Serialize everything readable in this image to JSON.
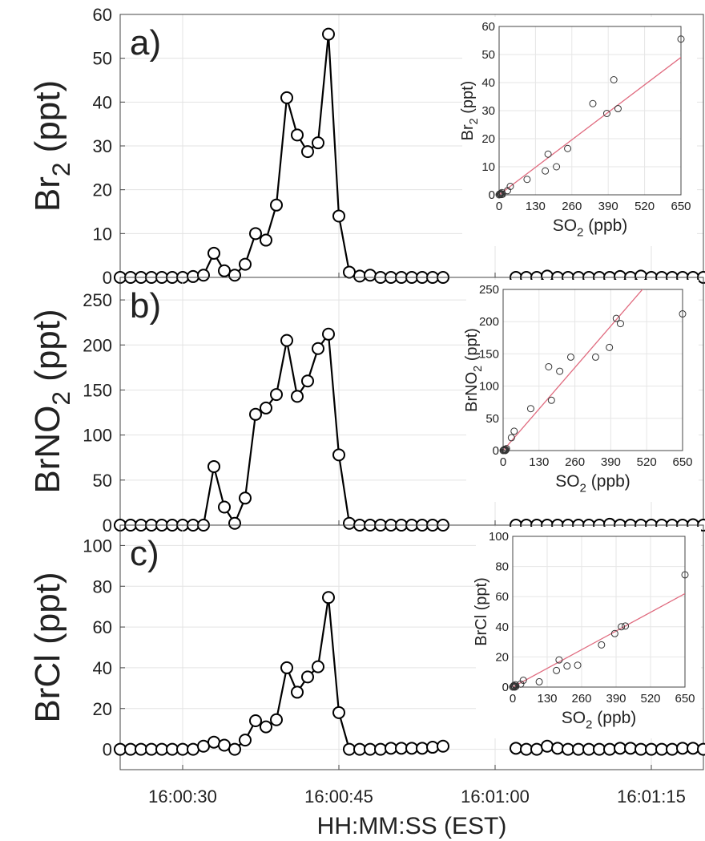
{
  "figure": {
    "xlabel": "HH:MM:SS (EST)"
  },
  "chart_data": [
    {
      "type": "line",
      "panel_label": "a)",
      "ylabel_main": "Br",
      "ylabel_sub": "2",
      "ylabel_tail": " (ppt)",
      "ylim": [
        0,
        60
      ],
      "yticks": [
        0,
        10,
        20,
        30,
        40,
        50,
        60
      ],
      "x_range_seconds": [
        "16:00:24",
        "16:01:20"
      ],
      "xticks": [
        "16:00:30",
        "16:00:45",
        "16:01:00",
        "16:01:15"
      ],
      "grid": true,
      "series": [
        {
          "x": [
            "16:00:24",
            "16:00:25",
            "16:00:26",
            "16:00:27",
            "16:00:28",
            "16:00:29",
            "16:00:30",
            "16:00:31",
            "16:00:32",
            "16:00:33",
            "16:00:34",
            "16:00:35",
            "16:00:36",
            "16:00:37",
            "16:00:38",
            "16:00:39",
            "16:00:40",
            "16:00:41",
            "16:00:42",
            "16:00:43",
            "16:00:44",
            "16:00:45",
            "16:00:46",
            "16:00:47",
            "16:00:48",
            "16:00:49",
            "16:00:50",
            "16:00:51",
            "16:00:52",
            "16:00:53",
            "16:00:54",
            "16:00:55"
          ],
          "y": [
            0,
            0,
            0,
            0,
            0,
            0,
            0,
            0.2,
            0.5,
            5.5,
            1.5,
            0.5,
            3,
            10,
            8.5,
            16.5,
            41,
            32.5,
            28.7,
            30.7,
            55.5,
            14,
            1.2,
            0.3,
            0.5,
            0,
            0,
            0,
            0,
            0,
            0,
            0
          ]
        },
        {
          "x": [
            "16:01:02",
            "16:01:03",
            "16:01:04",
            "16:01:05",
            "16:01:06",
            "16:01:07",
            "16:01:08",
            "16:01:09",
            "16:01:10",
            "16:01:11",
            "16:01:12",
            "16:01:13",
            "16:01:14",
            "16:01:15",
            "16:01:16",
            "16:01:17",
            "16:01:18",
            "16:01:19",
            "16:01:20"
          ],
          "y": [
            0,
            0,
            0,
            0.3,
            0,
            0,
            0,
            0,
            0,
            0,
            0.2,
            0,
            0.3,
            0,
            0,
            0,
            0,
            0,
            0
          ]
        }
      ],
      "inset": {
        "type": "scatter",
        "xlabel_main": "SO",
        "xlabel_sub": "2",
        "xlabel_tail": " (ppb)",
        "ylabel_main": "Br",
        "ylabel_sub": "2",
        "ylabel_tail": " (ppt)",
        "xlim": [
          0,
          650
        ],
        "ylim": [
          0,
          60
        ],
        "xticks": [
          0,
          130,
          260,
          390,
          520,
          650
        ],
        "yticks": [
          0,
          10,
          20,
          30,
          40,
          50,
          60
        ],
        "points": [
          [
            0,
            0
          ],
          [
            2,
            0.3
          ],
          [
            4,
            0.2
          ],
          [
            6,
            0.5
          ],
          [
            8,
            0.1
          ],
          [
            10,
            0.8
          ],
          [
            12,
            0.2
          ],
          [
            30,
            1.5
          ],
          [
            40,
            3
          ],
          [
            100,
            5.5
          ],
          [
            165,
            8.5
          ],
          [
            175,
            14.5
          ],
          [
            205,
            10
          ],
          [
            245,
            16.5
          ],
          [
            335,
            32.5
          ],
          [
            385,
            29
          ],
          [
            410,
            41
          ],
          [
            425,
            30.7
          ],
          [
            650,
            55.5
          ]
        ],
        "fit_line": [
          [
            0,
            0
          ],
          [
            650,
            49
          ]
        ]
      }
    },
    {
      "type": "line",
      "panel_label": "b)",
      "ylabel_main": "BrNO",
      "ylabel_sub": "2",
      "ylabel_tail": " (ppt)",
      "ylim": [
        0,
        275
      ],
      "yticks": [
        0,
        50,
        100,
        150,
        200,
        250
      ],
      "x_range_seconds": [
        "16:00:24",
        "16:01:20"
      ],
      "xticks": [
        "16:00:30",
        "16:00:45",
        "16:01:00",
        "16:01:15"
      ],
      "grid": true,
      "series": [
        {
          "x": [
            "16:00:24",
            "16:00:25",
            "16:00:26",
            "16:00:27",
            "16:00:28",
            "16:00:29",
            "16:00:30",
            "16:00:31",
            "16:00:32",
            "16:00:33",
            "16:00:34",
            "16:00:35",
            "16:00:36",
            "16:00:37",
            "16:00:38",
            "16:00:39",
            "16:00:40",
            "16:00:41",
            "16:00:42",
            "16:00:43",
            "16:00:44",
            "16:00:45",
            "16:00:46",
            "16:00:47",
            "16:00:48",
            "16:00:49",
            "16:00:50",
            "16:00:51",
            "16:00:52",
            "16:00:53",
            "16:00:54",
            "16:00:55"
          ],
          "y": [
            0,
            0,
            0,
            0,
            0,
            0,
            0,
            0,
            0,
            65,
            20,
            2,
            30,
            123,
            130,
            145,
            205,
            143,
            160,
            196,
            212,
            78,
            2,
            0,
            0,
            0,
            0,
            0,
            0,
            0,
            0,
            0
          ]
        },
        {
          "x": [
            "16:01:02",
            "16:01:03",
            "16:01:04",
            "16:01:05",
            "16:01:06",
            "16:01:07",
            "16:01:08",
            "16:01:09",
            "16:01:10",
            "16:01:11",
            "16:01:12",
            "16:01:13",
            "16:01:14",
            "16:01:15",
            "16:01:16",
            "16:01:17",
            "16:01:18",
            "16:01:19",
            "16:01:20"
          ],
          "y": [
            0,
            0,
            0,
            0,
            0,
            0,
            0,
            0,
            0,
            1,
            0,
            0,
            0,
            0,
            0,
            0,
            0,
            0.5,
            0
          ]
        }
      ],
      "inset": {
        "type": "scatter",
        "xlabel_main": "SO",
        "xlabel_sub": "2",
        "xlabel_tail": " (ppb)",
        "ylabel_main": "BrNO",
        "ylabel_sub": "2",
        "ylabel_tail": " (ppt)",
        "xlim": [
          0,
          650
        ],
        "ylim": [
          0,
          250
        ],
        "xticks": [
          0,
          130,
          260,
          390,
          520,
          650
        ],
        "yticks": [
          0,
          50,
          100,
          150,
          200,
          250
        ],
        "points": [
          [
            0,
            0
          ],
          [
            2,
            1
          ],
          [
            4,
            0.5
          ],
          [
            6,
            2
          ],
          [
            8,
            0
          ],
          [
            10,
            1
          ],
          [
            12,
            3
          ],
          [
            30,
            20
          ],
          [
            40,
            30
          ],
          [
            100,
            65
          ],
          [
            165,
            130
          ],
          [
            175,
            78
          ],
          [
            205,
            123
          ],
          [
            245,
            145
          ],
          [
            335,
            145
          ],
          [
            385,
            160
          ],
          [
            410,
            205
          ],
          [
            425,
            197
          ],
          [
            650,
            212
          ]
        ],
        "fit_line": [
          [
            0,
            0
          ],
          [
            650,
            322
          ]
        ]
      }
    },
    {
      "type": "line",
      "panel_label": "c)",
      "ylabel_main": "BrCl",
      "ylabel_sub": "",
      "ylabel_tail": " (ppt)",
      "ylim": [
        -10,
        110
      ],
      "yticks": [
        0,
        20,
        40,
        60,
        80,
        100
      ],
      "x_range_seconds": [
        "16:00:24",
        "16:01:20"
      ],
      "xticks": [
        "16:00:30",
        "16:00:45",
        "16:01:00",
        "16:01:15"
      ],
      "grid": true,
      "series": [
        {
          "x": [
            "16:00:24",
            "16:00:25",
            "16:00:26",
            "16:00:27",
            "16:00:28",
            "16:00:29",
            "16:00:30",
            "16:00:31",
            "16:00:32",
            "16:00:33",
            "16:00:34",
            "16:00:35",
            "16:00:36",
            "16:00:37",
            "16:00:38",
            "16:00:39",
            "16:00:40",
            "16:00:41",
            "16:00:42",
            "16:00:43",
            "16:00:44",
            "16:00:45",
            "16:00:46",
            "16:00:47",
            "16:00:48",
            "16:00:49",
            "16:00:50",
            "16:00:51",
            "16:00:52",
            "16:00:53",
            "16:00:54",
            "16:00:55"
          ],
          "y": [
            0,
            0,
            0,
            0,
            0,
            0,
            0,
            0,
            1.5,
            3.5,
            2,
            0,
            4.5,
            14,
            11,
            14.5,
            40,
            28,
            35.5,
            40.5,
            74.5,
            18,
            0,
            0,
            0,
            0,
            0.5,
            0.5,
            0.5,
            0.5,
            1,
            1.5
          ]
        },
        {
          "x": [
            "16:01:02",
            "16:01:03",
            "16:01:04",
            "16:01:05",
            "16:01:06",
            "16:01:07",
            "16:01:08",
            "16:01:09",
            "16:01:10",
            "16:01:11",
            "16:01:12",
            "16:01:13",
            "16:01:14",
            "16:01:15",
            "16:01:16",
            "16:01:17",
            "16:01:18",
            "16:01:19",
            "16:01:20"
          ],
          "y": [
            0.5,
            0,
            0,
            1.5,
            0.5,
            0,
            0,
            0,
            0,
            0,
            0.5,
            0.5,
            0,
            0,
            0,
            0,
            0.5,
            0.5,
            0
          ]
        }
      ],
      "inset": {
        "type": "scatter",
        "xlabel_main": "SO",
        "xlabel_sub": "2",
        "xlabel_tail": " (ppb)",
        "ylabel_main": "BrCl",
        "ylabel_sub": "",
        "ylabel_tail": " (ppt)",
        "xlim": [
          0,
          650
        ],
        "ylim": [
          0,
          100
        ],
        "xticks": [
          0,
          130,
          260,
          390,
          520,
          650
        ],
        "yticks": [
          0,
          20,
          40,
          60,
          80,
          100
        ],
        "points": [
          [
            0,
            0
          ],
          [
            2,
            0.5
          ],
          [
            4,
            1
          ],
          [
            6,
            0.5
          ],
          [
            8,
            0
          ],
          [
            10,
            1.5
          ],
          [
            12,
            0.5
          ],
          [
            30,
            2
          ],
          [
            40,
            4.5
          ],
          [
            100,
            3.5
          ],
          [
            165,
            11
          ],
          [
            175,
            18
          ],
          [
            205,
            14
          ],
          [
            245,
            14.5
          ],
          [
            335,
            28
          ],
          [
            385,
            35.5
          ],
          [
            410,
            40
          ],
          [
            425,
            40.5
          ],
          [
            650,
            74.5
          ]
        ],
        "fit_line": [
          [
            0,
            0
          ],
          [
            650,
            62
          ]
        ]
      }
    }
  ]
}
